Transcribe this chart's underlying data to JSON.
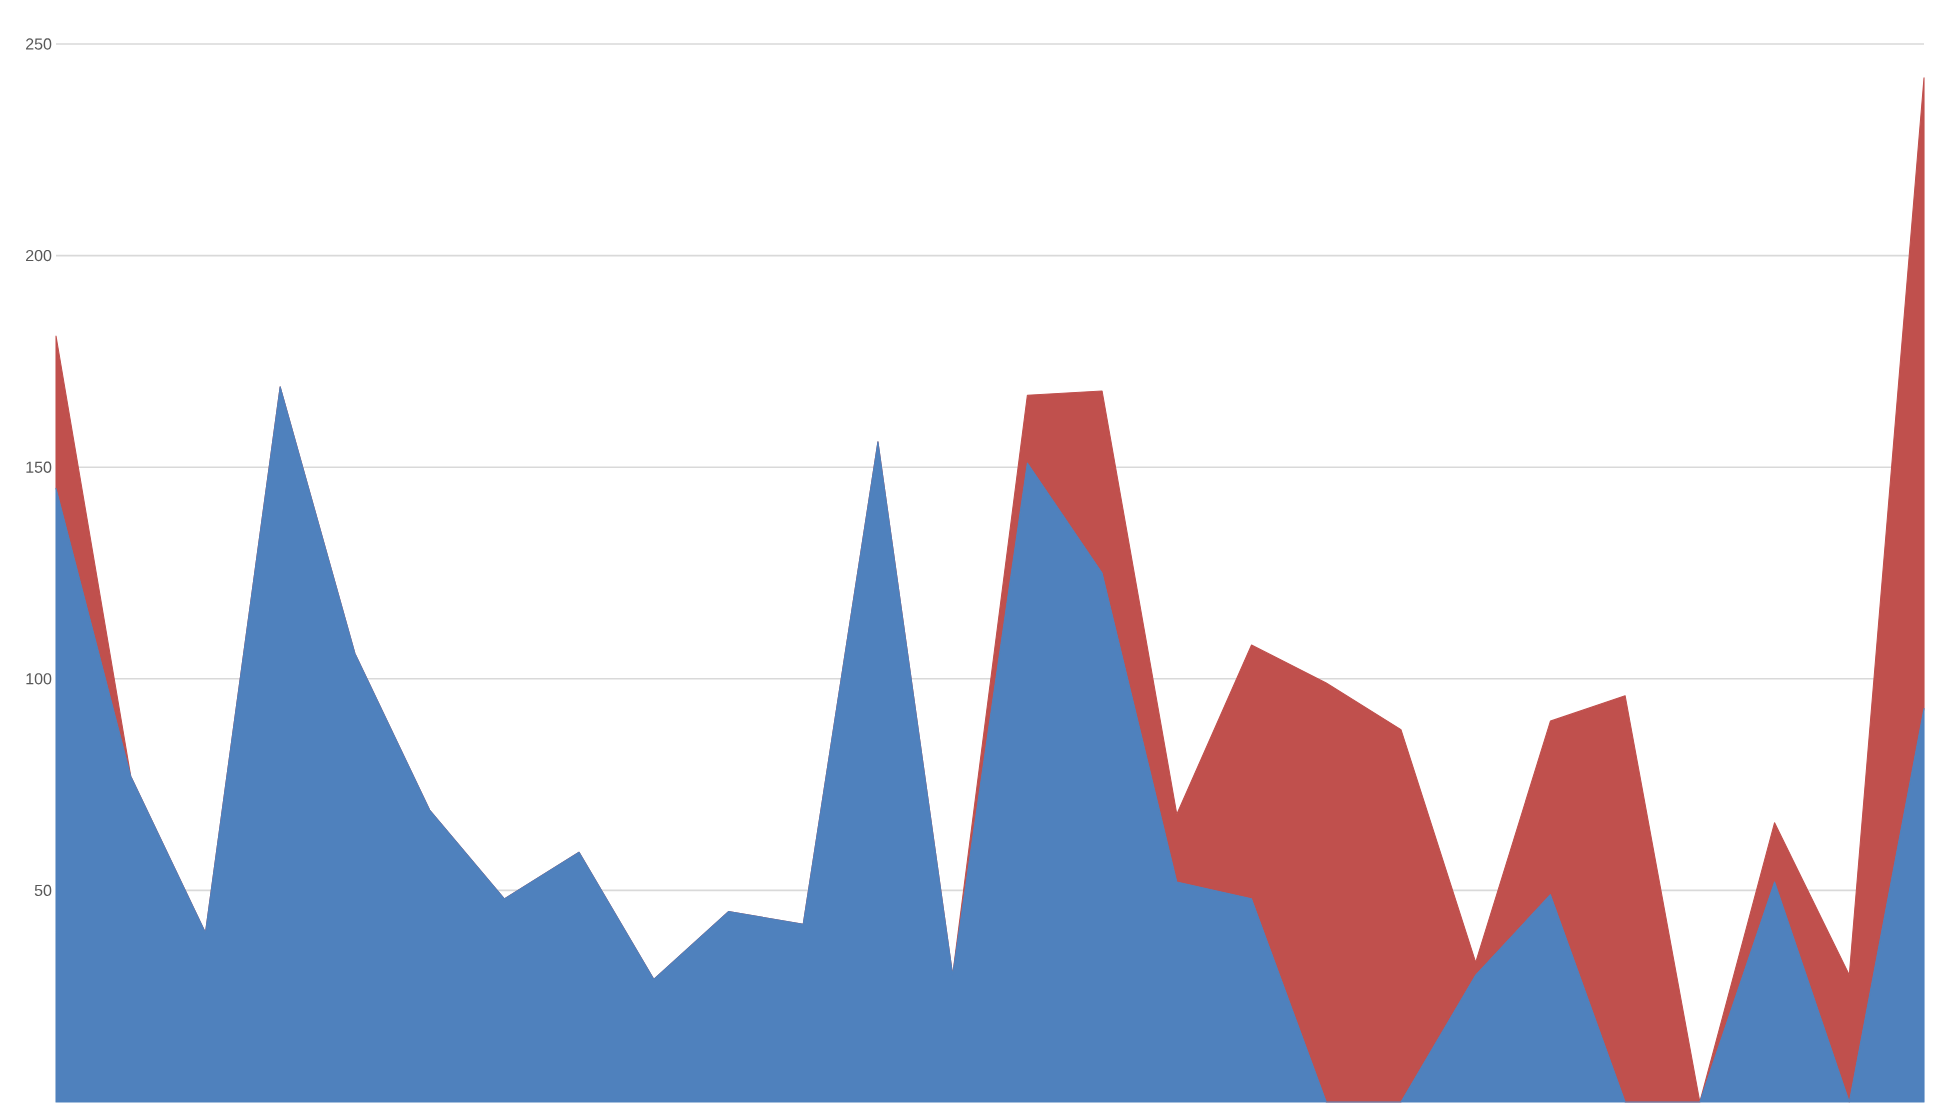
{
  "chart_data": {
    "type": "area",
    "stacked": true,
    "categories": [
      null,
      null,
      null,
      null,
      null,
      null,
      null,
      null,
      null,
      null,
      null,
      null,
      null,
      null,
      null,
      null,
      null,
      null,
      null,
      null,
      null,
      null,
      null,
      null,
      null,
      null
    ],
    "series": [
      {
        "color": "#4f81bd",
        "values": [
          145,
          77,
          40,
          169,
          106,
          69,
          48,
          59,
          29,
          45,
          42,
          156,
          30,
          151,
          125,
          52,
          48,
          0,
          0,
          30,
          49,
          0,
          0,
          52,
          0,
          93
        ]
      },
      {
        "color": "#c0504d",
        "values": [
          36,
          0,
          0,
          0,
          0,
          0,
          0,
          0,
          0,
          0,
          0,
          0,
          0,
          16,
          43,
          16,
          60,
          99,
          88,
          3,
          41,
          96,
          0,
          14,
          30,
          149
        ]
      }
    ],
    "ylim": [
      0,
      250
    ],
    "yticks": [
      50,
      100,
      150,
      200,
      250
    ],
    "grid": "y",
    "tick_labels": "y"
  }
}
